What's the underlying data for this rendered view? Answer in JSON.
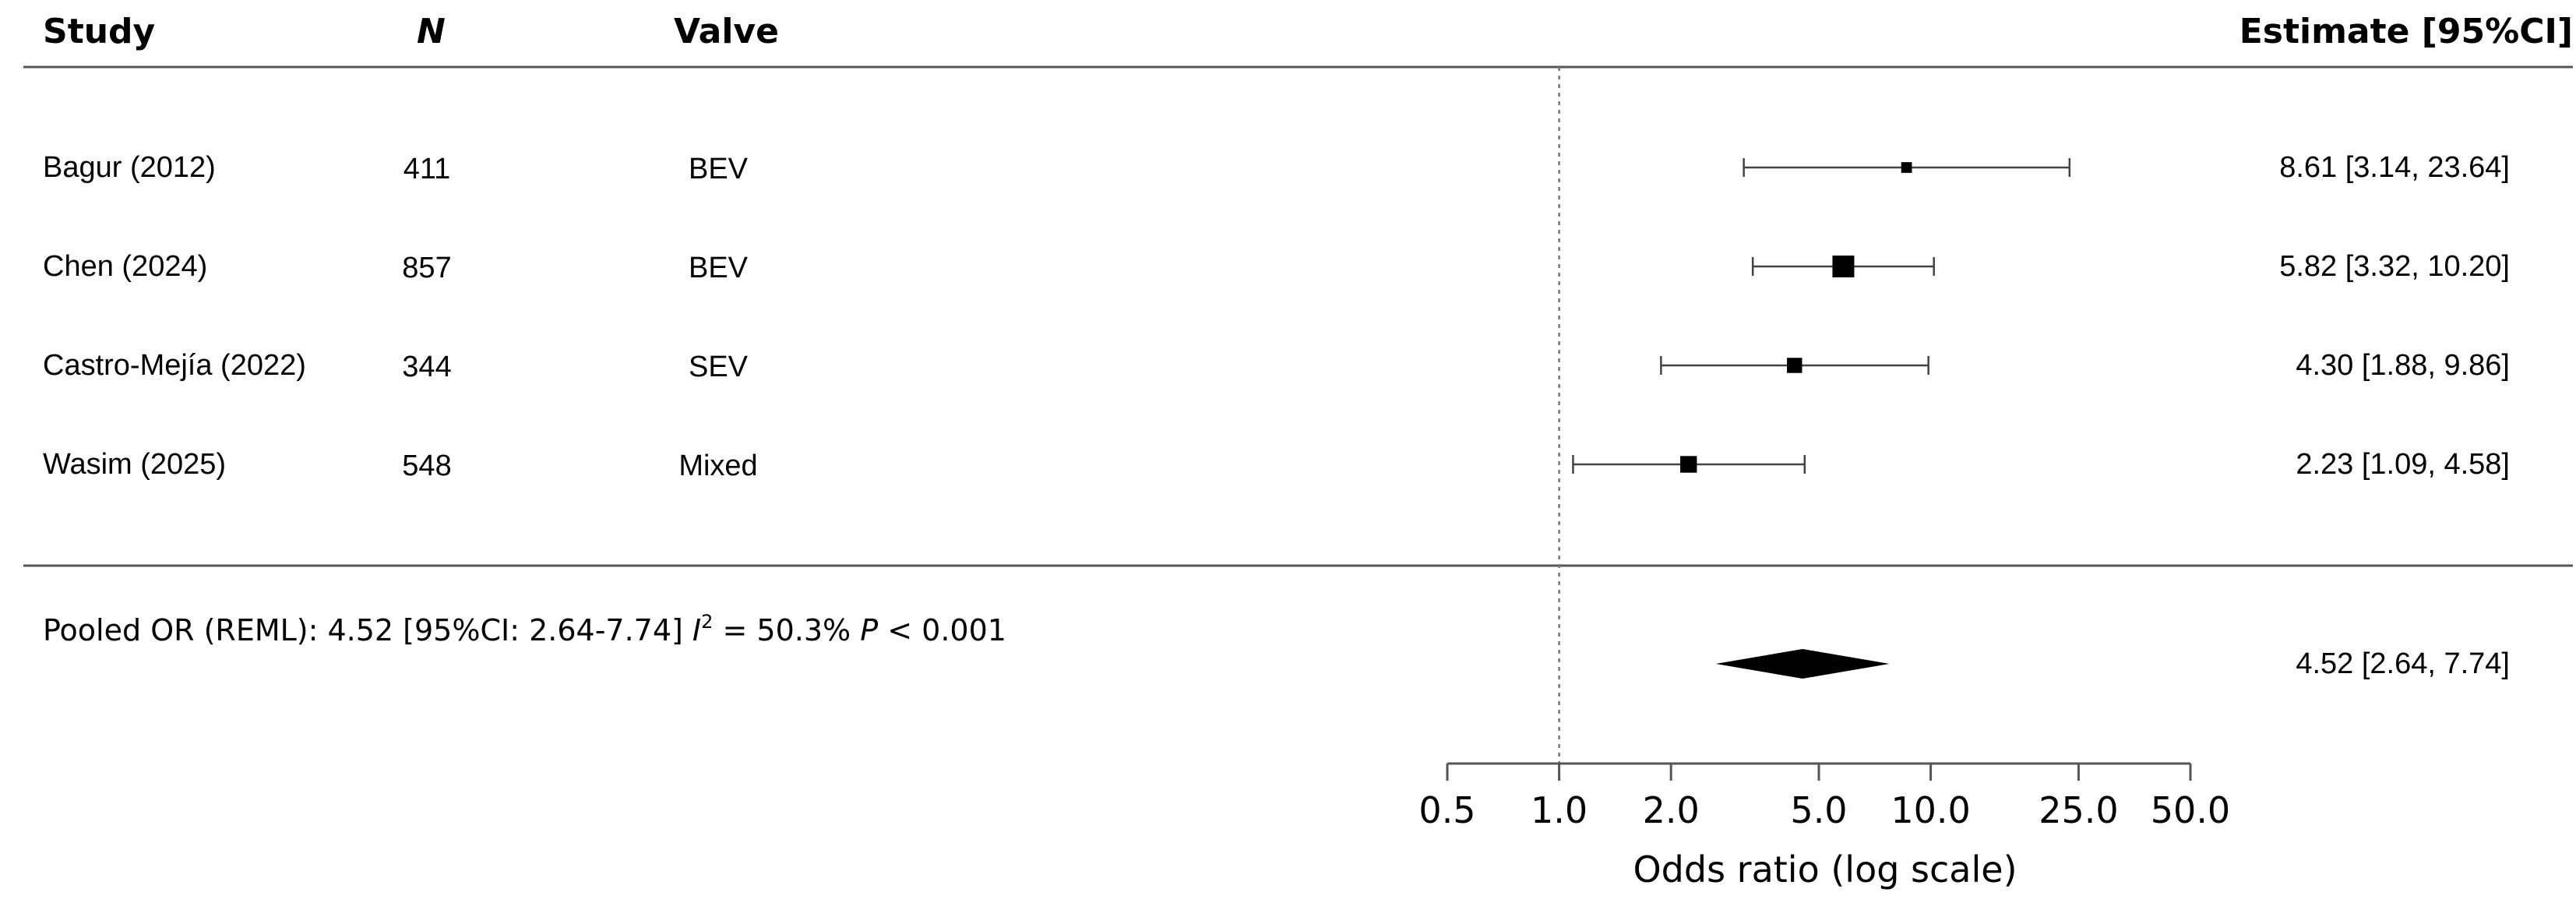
{
  "headers": {
    "study": "Study",
    "n": "N",
    "valve": "Valve",
    "estimate": "Estimate [95%CI]"
  },
  "pooled_text": {
    "prefix": "Pooled OR (REML): 4.52 [95%CI: 2.64-7.74] ",
    "i_symbol": "I",
    "i_sup": "2",
    "i_value": " = 50.3% ",
    "p_symbol": "P",
    "p_value": " < 0.001"
  },
  "chart_data": {
    "type": "forest",
    "x_scale": "log",
    "xlabel": "Odds ratio (log scale)",
    "xlim": [
      0.5,
      50
    ],
    "x_ticks": [
      0.5,
      1,
      2,
      5,
      10,
      25,
      50
    ],
    "x_tick_labels": [
      "0.5",
      "1.0",
      "2.0",
      "5.0",
      "10.0",
      "25.0",
      "50.0"
    ],
    "reference_line": 1,
    "studies": [
      {
        "study": "Bagur (2012)",
        "n": "411",
        "valve": "BEV",
        "or": 8.61,
        "lower": 3.14,
        "upper": 23.64,
        "estimate_label": "8.61 [3.14, 23.64]",
        "weight": 0.25
      },
      {
        "study": "Chen (2024)",
        "n": "857",
        "valve": "BEV",
        "or": 5.82,
        "lower": 3.32,
        "upper": 10.2,
        "estimate_label": "5.82 [3.32, 10.20]",
        "weight": 1.0
      },
      {
        "study": "Castro-Mejía (2022)",
        "n": "344",
        "valve": "SEV",
        "or": 4.3,
        "lower": 1.88,
        "upper": 9.86,
        "estimate_label": "4.30 [1.88,  9.86]",
        "weight": 0.55
      },
      {
        "study": "Wasim (2025)",
        "n": "548",
        "valve": "Mixed",
        "or": 2.23,
        "lower": 1.09,
        "upper": 4.58,
        "estimate_label": "2.23 [1.09,  4.58]",
        "weight": 0.65
      }
    ],
    "pooled": {
      "or": 4.52,
      "lower": 2.64,
      "upper": 7.74,
      "estimate_label": "4.52 [2.64,  7.74]",
      "method": "REML"
    }
  }
}
